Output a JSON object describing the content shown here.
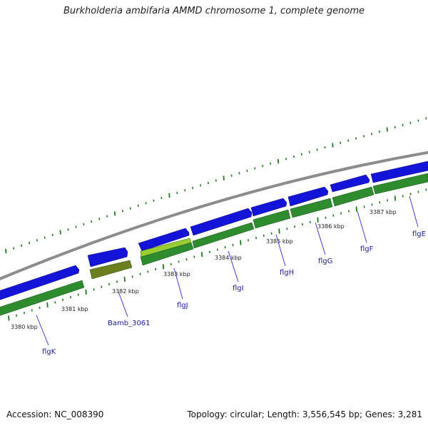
{
  "title": "Burkholderia ambifaria AMMD chromosome 1, complete genome",
  "footer": {
    "accession": "Accession: NC_008390",
    "stats": "Topology: circular; Length: 3,556,545 bp; Genes: 3,281"
  },
  "colors": {
    "backbone": "#8c8c8c",
    "forward_cds": "#1414d9",
    "forward_gene": "#2e8b2e",
    "highlight_cds": "#9acd32",
    "highlight_gene": "#6b7f1f",
    "tick": "#1f7a1f",
    "label_line": "#2a2ad6",
    "label_text": "#1a1a9c"
  },
  "kbp_labels": [
    "3380 kbp",
    "3381 kbp",
    "3382 kbp",
    "3383 kbp",
    "3384 kbp",
    "3385 kbp",
    "3386 kbp",
    "3387 kbp"
  ],
  "genes": [
    {
      "label": "flgK"
    },
    {
      "label": "Bamb_3061"
    },
    {
      "label": "flgJ"
    },
    {
      "label": "flgI"
    },
    {
      "label": "flgH"
    },
    {
      "label": "flgG"
    },
    {
      "label": "flgF"
    },
    {
      "label": "flgE"
    }
  ]
}
